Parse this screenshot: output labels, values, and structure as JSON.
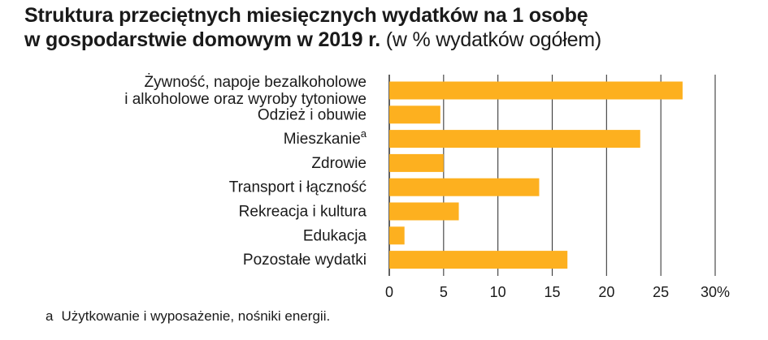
{
  "title": {
    "line1": "Struktura przeciętnych miesięcznych wydatków na 1 osobę",
    "line2_bold": "w gospodarstwie domowym w 2019 r.",
    "line2_rest": "(w % wydatków ogółem)"
  },
  "footnote": {
    "marker": "a",
    "text": "Użytkowanie i wyposażenie, nośniki energii."
  },
  "colors": {
    "bar": "#fdb01f",
    "grid": "#3a3a3a",
    "text": "#1a1a1a"
  },
  "chart_data": {
    "type": "bar",
    "orientation": "horizontal",
    "categories": [
      [
        "Żywność, napoje bezalkoholowe",
        "i alkoholowe oraz wyroby tytoniowe"
      ],
      [
        "Odzież i obuwie"
      ],
      [
        "Mieszkanie"
      ],
      [
        "Zdrowie"
      ],
      [
        "Transport i łączność"
      ],
      [
        "Rekreacja i kultura"
      ],
      [
        "Edukacja"
      ],
      [
        "Pozostałe wydatki"
      ]
    ],
    "category_superscripts": [
      "",
      "",
      "a",
      "",
      "",
      "",
      "",
      ""
    ],
    "values": [
      27.0,
      4.7,
      23.1,
      5.0,
      13.8,
      6.4,
      1.4,
      16.4
    ],
    "xlim": [
      0,
      30
    ],
    "xticks": [
      0,
      5,
      10,
      15,
      20,
      25,
      30
    ],
    "xtick_labels": [
      "0",
      "5",
      "10",
      "15",
      "20",
      "25",
      "30%"
    ],
    "grid": true
  }
}
